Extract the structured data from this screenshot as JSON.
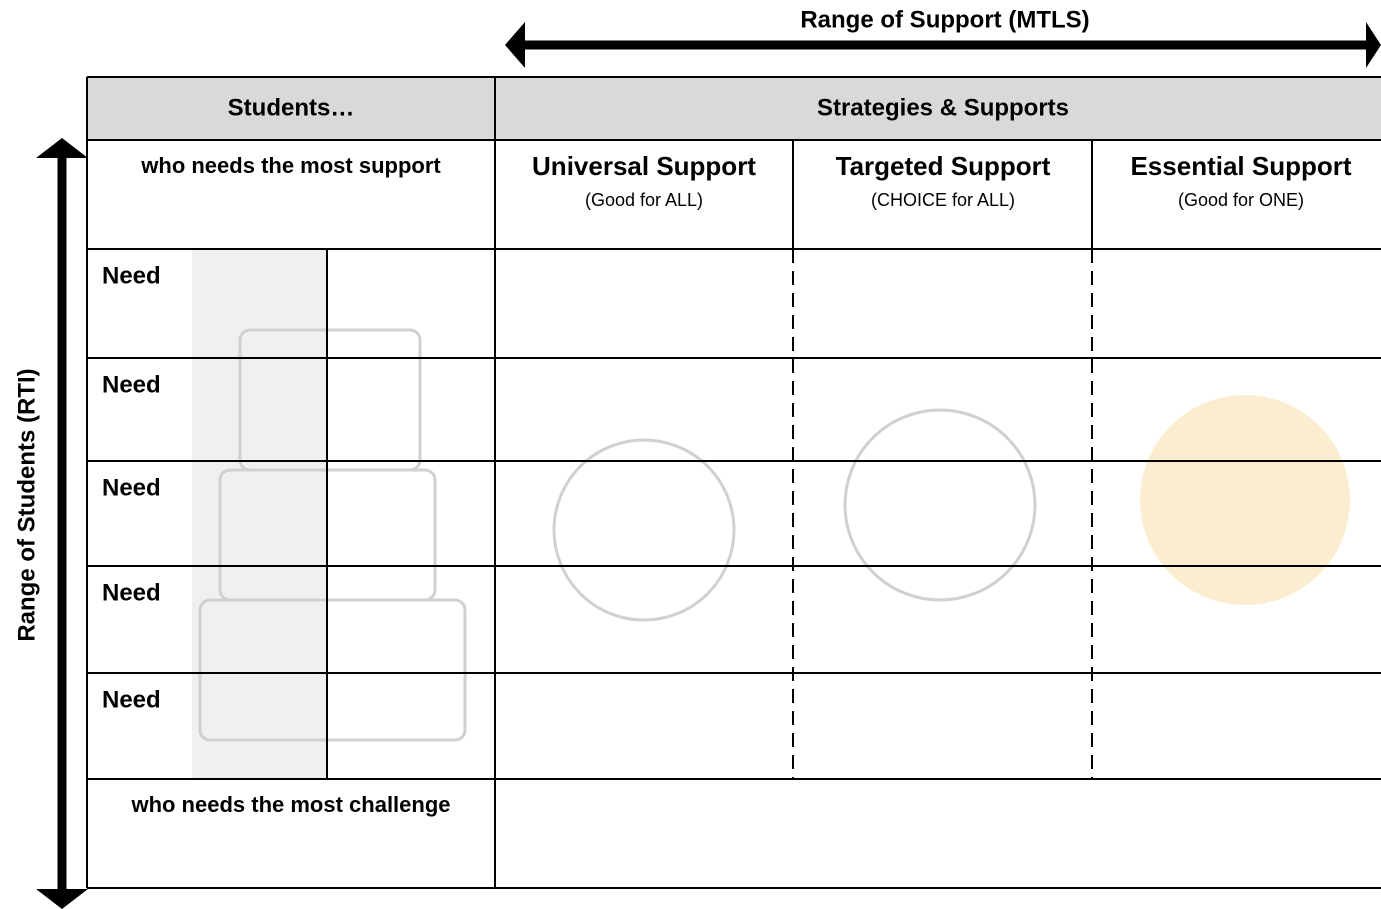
{
  "header": {
    "title": "Range of Support (MTLS)",
    "side_label": "Range of Students (RTI)"
  },
  "table": {
    "head": [
      "Students…",
      "Strategies & Supports"
    ],
    "top_row_label": "who needs the most support",
    "columns": [
      {
        "title": "Universal Support",
        "subtitle": "(Good for ALL)"
      },
      {
        "title": "Targeted Support",
        "subtitle": "(CHOICE for ALL)"
      },
      {
        "title": "Essential Support",
        "subtitle": "(Good for ONE)"
      }
    ],
    "rows": [
      "Need",
      "Need",
      "Need",
      "Need",
      "Need"
    ],
    "bottom_row_label": "who needs the most challenge"
  }
}
